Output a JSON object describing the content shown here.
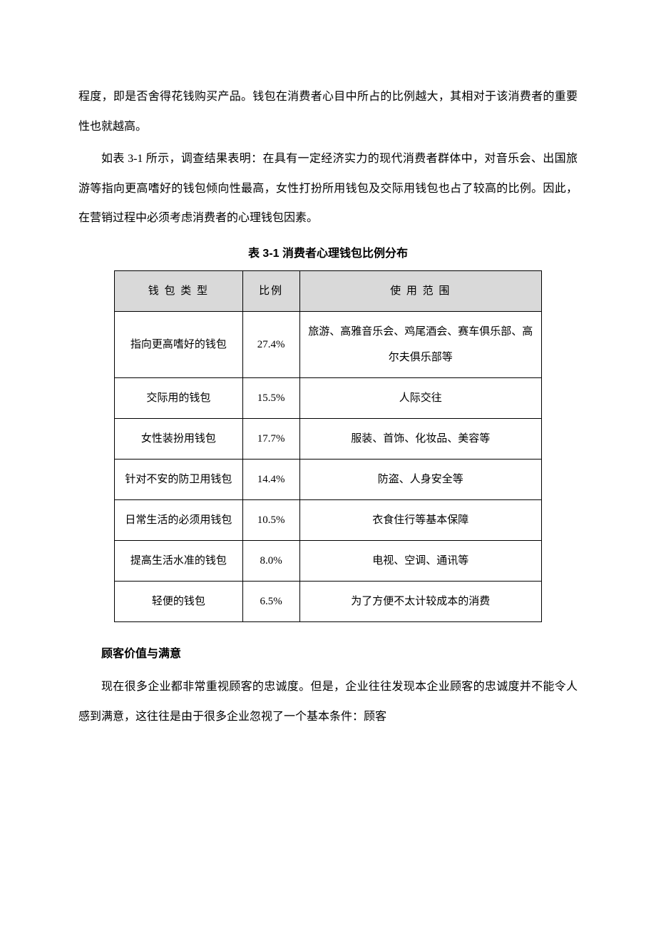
{
  "paragraphs": {
    "p1": "程度，即是否舍得花钱购买产品。钱包在消费者心目中所占的比例越大，其相对于该消费者的重要性也就越高。",
    "p2": "如表 3-1 所示，调查结果表明：在具有一定经济实力的现代消费者群体中，对音乐会、出国旅游等指向更高嗜好的钱包倾向性最高，女性打扮所用钱包及交际用钱包也占了较高的比例。因此，在营销过程中必须考虑消费者的心理钱包因素。"
  },
  "table": {
    "caption": "表 3-1  消费者心理钱包比例分布",
    "headers": {
      "type": "钱 包 类 型",
      "ratio": "比例",
      "usage": "使 用 范 围"
    },
    "rows": [
      {
        "type": "指向更高嗜好的钱包",
        "ratio": "27.4%",
        "usage": "旅游、高雅音乐会、鸡尾酒会、赛车俱乐部、高尔夫俱乐部等"
      },
      {
        "type": "交际用的钱包",
        "ratio": "15.5%",
        "usage": "人际交往"
      },
      {
        "type": "女性装扮用钱包",
        "ratio": "17.7%",
        "usage": "服装、首饰、化妆品、美容等"
      },
      {
        "type": "针对不安的防卫用钱包",
        "ratio": "14.4%",
        "usage": "防盗、人身安全等"
      },
      {
        "type": "日常生活的必须用钱包",
        "ratio": "10.5%",
        "usage": "衣食住行等基本保障"
      },
      {
        "type": "提高生活水准的钱包",
        "ratio": "8.0%",
        "usage": "电视、空调、通讯等"
      },
      {
        "type": "轻便的钱包",
        "ratio": "6.5%",
        "usage": "为了方便不太计较成本的消费"
      }
    ],
    "styling": {
      "header_bg": "#d9d9d9",
      "border_color": "#000000",
      "font_size": 15,
      "col_widths": {
        "type": 180,
        "ratio": 80,
        "usage": 340
      }
    }
  },
  "heading": "顾客价值与满意",
  "paragraphs2": {
    "p3": "现在很多企业都非常重视顾客的忠诚度。但是，企业往往发现本企业顾客的忠诚度并不能令人感到满意，这往往是由于很多企业忽视了一个基本条件：顾客"
  },
  "styling": {
    "page_bg": "#ffffff",
    "text_color": "#000000",
    "body_font_size": 16,
    "line_height": 2.6
  }
}
